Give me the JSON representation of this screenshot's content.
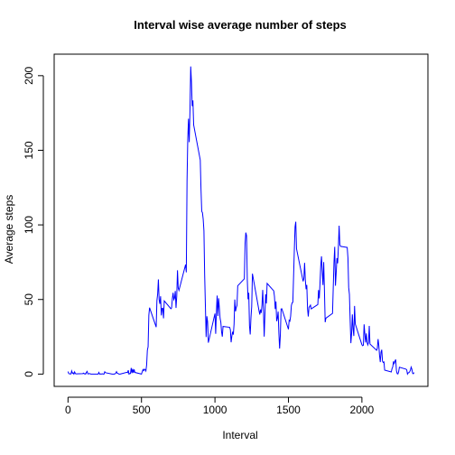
{
  "chart_data": {
    "type": "line",
    "title": "Interval wise average number of steps",
    "xlabel": "Interval",
    "ylabel": "Average steps",
    "xlim": [
      -94.2,
      2449.2
    ],
    "ylim": [
      -8.25,
      214.42
    ],
    "xticks": [
      0,
      500,
      1000,
      1500,
      2000
    ],
    "yticks": [
      0,
      50,
      100,
      150,
      200
    ],
    "x": [
      0,
      5,
      10,
      15,
      20,
      25,
      30,
      35,
      40,
      45,
      50,
      55,
      100,
      105,
      110,
      115,
      120,
      125,
      130,
      135,
      140,
      145,
      150,
      155,
      200,
      205,
      210,
      215,
      220,
      225,
      230,
      235,
      240,
      245,
      250,
      255,
      300,
      305,
      310,
      315,
      320,
      325,
      330,
      335,
      340,
      345,
      350,
      355,
      400,
      405,
      410,
      415,
      420,
      425,
      430,
      435,
      440,
      445,
      450,
      455,
      500,
      505,
      510,
      515,
      520,
      525,
      530,
      535,
      540,
      545,
      550,
      555,
      600,
      605,
      610,
      615,
      620,
      625,
      630,
      635,
      640,
      645,
      650,
      655,
      700,
      705,
      710,
      715,
      720,
      725,
      730,
      735,
      740,
      745,
      750,
      755,
      800,
      805,
      810,
      815,
      820,
      825,
      830,
      835,
      840,
      845,
      850,
      855,
      900,
      905,
      910,
      915,
      920,
      925,
      930,
      935,
      940,
      945,
      950,
      955,
      1000,
      1005,
      1010,
      1015,
      1020,
      1025,
      1030,
      1035,
      1040,
      1045,
      1050,
      1055,
      1100,
      1105,
      1110,
      1115,
      1120,
      1125,
      1130,
      1135,
      1140,
      1145,
      1150,
      1155,
      1200,
      1205,
      1210,
      1215,
      1220,
      1225,
      1230,
      1235,
      1240,
      1245,
      1250,
      1255,
      1300,
      1305,
      1310,
      1315,
      1320,
      1325,
      1330,
      1335,
      1340,
      1345,
      1350,
      1355,
      1400,
      1405,
      1410,
      1415,
      1420,
      1425,
      1430,
      1435,
      1440,
      1445,
      1450,
      1455,
      1500,
      1505,
      1510,
      1515,
      1520,
      1525,
      1530,
      1535,
      1540,
      1545,
      1550,
      1555,
      1600,
      1605,
      1610,
      1615,
      1620,
      1625,
      1630,
      1635,
      1640,
      1645,
      1650,
      1655,
      1700,
      1705,
      1710,
      1715,
      1720,
      1725,
      1730,
      1735,
      1740,
      1745,
      1750,
      1755,
      1800,
      1805,
      1810,
      1815,
      1820,
      1825,
      1830,
      1835,
      1840,
      1845,
      1850,
      1855,
      1900,
      1905,
      1910,
      1915,
      1920,
      1925,
      1930,
      1935,
      1940,
      1945,
      1950,
      1955,
      2000,
      2005,
      2010,
      2015,
      2020,
      2025,
      2030,
      2035,
      2040,
      2045,
      2050,
      2055,
      2100,
      2105,
      2110,
      2115,
      2120,
      2125,
      2130,
      2135,
      2140,
      2145,
      2150,
      2155,
      2200,
      2205,
      2210,
      2215,
      2220,
      2225,
      2230,
      2235,
      2240,
      2245,
      2250,
      2255,
      2300,
      2305,
      2310,
      2315,
      2320,
      2325,
      2330,
      2335,
      2340,
      2345,
      2350,
      2355
    ],
    "series": [
      {
        "color": "#0000ff",
        "values": [
          1.72,
          0.34,
          0.13,
          0.15,
          0.08,
          2.09,
          0.53,
          0.87,
          0,
          1.47,
          0.3,
          0.13,
          0.32,
          0.68,
          0.15,
          0.34,
          0,
          1.11,
          1.83,
          0.17,
          0.17,
          0.38,
          0.26,
          0,
          0,
          0,
          1.13,
          0,
          0,
          0.13,
          0,
          0.23,
          0,
          0,
          1.55,
          0.94,
          0,
          0,
          0,
          0,
          0.21,
          0.62,
          1.62,
          0.58,
          0.49,
          0.08,
          0,
          0,
          1.19,
          0.94,
          2.57,
          0,
          0.34,
          0.36,
          4.11,
          0.66,
          3.49,
          0.83,
          3.11,
          1.11,
          0,
          1.57,
          3,
          2.25,
          3.32,
          2.96,
          2.09,
          6.06,
          16.02,
          18.34,
          39.45,
          44.49,
          31.49,
          49.26,
          53.77,
          63.45,
          49.96,
          47.08,
          52.15,
          39.34,
          44.02,
          44.17,
          37.36,
          49.04,
          43.81,
          44.38,
          50.51,
          54.51,
          49.92,
          50.98,
          55.68,
          44.32,
          52.26,
          69.55,
          57.85,
          56.15,
          73.38,
          68.21,
          129.43,
          157.53,
          171.15,
          155.4,
          177.3,
          206.17,
          195.92,
          179.57,
          183.4,
          167.02,
          143.45,
          124.04,
          109.11,
          108.11,
          103.72,
          95.96,
          66.21,
          45.23,
          24.79,
          38.75,
          34.98,
          21.06,
          40.57,
          26.98,
          42.42,
          52.66,
          38.92,
          50.79,
          44.28,
          37.42,
          34.7,
          28.34,
          25.09,
          31.94,
          31.36,
          29.68,
          21.32,
          25.55,
          28.38,
          26.47,
          33.43,
          49.98,
          42.04,
          44.6,
          46.04,
          59.19,
          63.87,
          87.7,
          94.85,
          92.77,
          63.4,
          50.17,
          54.47,
          32.42,
          26.53,
          37.74,
          45.06,
          67.28,
          42.34,
          39.88,
          43.26,
          40.98,
          46.25,
          56.43,
          42.75,
          25.13,
          39.96,
          53.55,
          47.32,
          60.81,
          55.75,
          51.96,
          43.58,
          48.7,
          35.47,
          37.55,
          41.85,
          27.51,
          17.11,
          26.08,
          43.62,
          43.77,
          30.02,
          36.08,
          35.49,
          38.85,
          45.96,
          47.75,
          48.13,
          65.32,
          82.91,
          98.66,
          102.11,
          83.96,
          62.13,
          64.13,
          74.55,
          63.17,
          56.91,
          59.77,
          43.87,
          38.57,
          44.66,
          45.45,
          46.21,
          43.68,
          46.62,
          56.3,
          50.72,
          61.23,
          72.72,
          78.94,
          68.94,
          59.66,
          75.09,
          56.51,
          34.77,
          37.45,
          40.68,
          58.02,
          74.7,
          85.32,
          59.26,
          67.77,
          77.7,
          74.25,
          85.34,
          99.45,
          86.58,
          85.6,
          84.87,
          77.83,
          58.04,
          53.36,
          36.32,
          20.72,
          27.4,
          40.02,
          30.21,
          25.55,
          45.66,
          33.53,
          19.62,
          19.02,
          19.34,
          33.34,
          26.81,
          21.17,
          27.3,
          21.34,
          19.55,
          21.32,
          32.3,
          20.15,
          15.94,
          17.23,
          23.45,
          19.25,
          12.45,
          8.02,
          14.66,
          16.3,
          8.68,
          7.79,
          8.13,
          2.62,
          1.45,
          3.68,
          4.81,
          8.51,
          7.08,
          8.7,
          9.75,
          2.21,
          0.32,
          0.11,
          1.6,
          4.6,
          3.3,
          2.85,
          0,
          0.83,
          0.96,
          1.58,
          2.6,
          4.7,
          3.3,
          0.64,
          0.23,
          1.08
        ]
      }
    ]
  }
}
